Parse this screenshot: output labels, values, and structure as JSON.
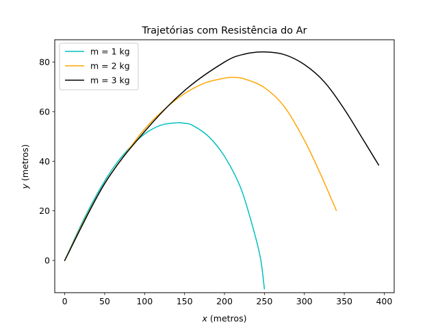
{
  "chart_data": {
    "type": "line",
    "title": "Trajetórias com Resistência do Ar",
    "xlabel_var": "x",
    "xlabel_unit": " (metros)",
    "ylabel_var": "y",
    "ylabel_unit": " (metros)",
    "xlim": [
      -12.5,
      412.5
    ],
    "ylim": [
      -13,
      89
    ],
    "xticks": [
      0,
      50,
      100,
      150,
      200,
      250,
      300,
      350,
      400
    ],
    "xtick_labels": [
      "0",
      "50",
      "100",
      "150",
      "200",
      "250",
      "300",
      "350",
      "400"
    ],
    "yticks": [
      0,
      20,
      40,
      60,
      80
    ],
    "ytick_labels": [
      "0",
      "20",
      "40",
      "60",
      "80"
    ],
    "grid": false,
    "legend_position": "upper-left",
    "series": [
      {
        "name": "m = 1 kg",
        "color": "#00bfbf",
        "x": [
          0,
          20,
          40,
          60,
          80,
          100,
          120,
          140,
          150,
          160,
          180,
          200,
          220,
          235,
          245,
          250
        ],
        "y": [
          0,
          14,
          26.5,
          37,
          45,
          51,
          54.5,
          55.5,
          55.3,
          54.5,
          50,
          42,
          29.5,
          14,
          1,
          -11.5
        ]
      },
      {
        "name": "m = 2 kg",
        "color": "#ffa500",
        "x": [
          0,
          25,
          50,
          75,
          100,
          125,
          150,
          175,
          200,
          212,
          225,
          250,
          275,
          300,
          320,
          340
        ],
        "y": [
          0,
          16.5,
          31,
          42.5,
          53,
          61,
          67.3,
          71.5,
          73.5,
          73.8,
          73.2,
          69.7,
          62,
          48.5,
          35,
          20.2
        ]
      },
      {
        "name": "m = 3 kg",
        "color": "#000000",
        "x": [
          0,
          50,
          100,
          150,
          200,
          225,
          250,
          275,
          300,
          325,
          350,
          375,
          393
        ],
        "y": [
          0,
          31,
          52,
          68.5,
          80,
          83.2,
          84.1,
          83,
          79,
          72,
          61,
          48,
          38.5
        ]
      }
    ]
  }
}
